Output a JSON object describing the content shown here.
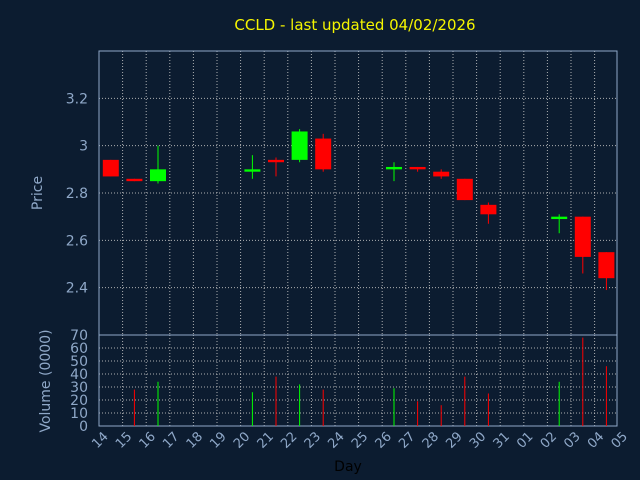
{
  "chart_data": {
    "type": "candlestick",
    "title": "CCLD - last updated 04/02/2026",
    "price_panel": {
      "ylabel": "Price",
      "ylim": [
        2.2,
        3.4
      ],
      "yticks": [
        "2.4",
        "2.6",
        "2.8",
        "3",
        "3.2"
      ]
    },
    "volume_panel": {
      "ylabel": "Volume (0000)",
      "ylim": [
        0,
        70
      ],
      "yticks": [
        "0",
        "10",
        "20",
        "30",
        "40",
        "50",
        "60",
        "70"
      ]
    },
    "xlabel": "Day",
    "x_ticks": [
      "14",
      "15",
      "16",
      "17",
      "18",
      "19",
      "20",
      "21",
      "22",
      "23",
      "24",
      "25",
      "26",
      "27",
      "28",
      "29",
      "30",
      "31",
      "01",
      "02",
      "03",
      "04",
      "05"
    ],
    "candles": [
      {
        "day": "14",
        "open": 2.94,
        "high": 2.94,
        "low": 2.87,
        "close": 2.87,
        "volume": 0
      },
      {
        "day": "15",
        "open": 2.86,
        "high": 2.86,
        "low": 2.85,
        "close": 2.85,
        "volume": 28
      },
      {
        "day": "16",
        "open": 2.85,
        "high": 3.0,
        "low": 2.84,
        "close": 2.9,
        "volume": 34
      },
      {
        "day": "20",
        "open": 2.89,
        "high": 2.96,
        "low": 2.86,
        "close": 2.9,
        "volume": 26
      },
      {
        "day": "21",
        "open": 2.94,
        "high": 2.95,
        "low": 2.87,
        "close": 2.93,
        "volume": 38
      },
      {
        "day": "22",
        "open": 2.94,
        "high": 3.07,
        "low": 2.93,
        "close": 3.06,
        "volume": 32
      },
      {
        "day": "23",
        "open": 3.03,
        "high": 3.05,
        "low": 2.89,
        "close": 2.9,
        "volume": 28
      },
      {
        "day": "26",
        "open": 2.9,
        "high": 2.93,
        "low": 2.85,
        "close": 2.91,
        "volume": 29
      },
      {
        "day": "27",
        "open": 2.91,
        "high": 2.91,
        "low": 2.89,
        "close": 2.9,
        "volume": 19
      },
      {
        "day": "28",
        "open": 2.89,
        "high": 2.9,
        "low": 2.86,
        "close": 2.87,
        "volume": 16
      },
      {
        "day": "29",
        "open": 2.86,
        "high": 2.86,
        "low": 2.77,
        "close": 2.77,
        "volume": 38
      },
      {
        "day": "30",
        "open": 2.75,
        "high": 2.76,
        "low": 2.67,
        "close": 2.71,
        "volume": 25
      },
      {
        "day": "02",
        "open": 2.69,
        "high": 2.71,
        "low": 2.63,
        "close": 2.7,
        "volume": 34
      },
      {
        "day": "03",
        "open": 2.7,
        "high": 2.7,
        "low": 2.46,
        "close": 2.53,
        "volume": 68
      },
      {
        "day": "04",
        "open": 2.55,
        "high": 2.55,
        "low": 2.39,
        "close": 2.44,
        "volume": 46
      }
    ],
    "colors": {
      "up": "#00ff00",
      "down": "#ff0000",
      "background": "#0c1c30",
      "frame": "#8fa8c8",
      "title": "#f5f500"
    },
    "grid": true
  }
}
